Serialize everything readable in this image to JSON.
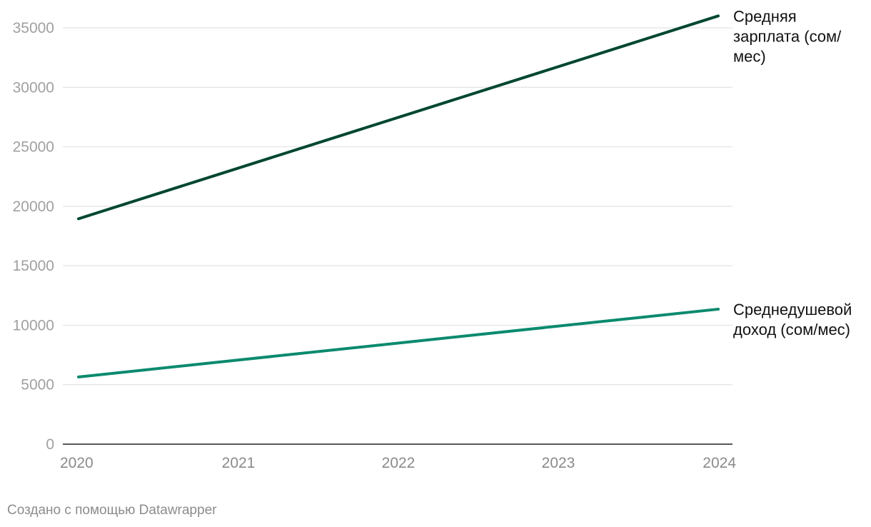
{
  "chart_data": {
    "type": "line",
    "x": [
      2020,
      2024
    ],
    "series": [
      {
        "name": "Средняя зарплата (сом/мес)",
        "name_lines": [
          "Средняя",
          "зарплата (сом/",
          "мес)"
        ],
        "values": [
          18950,
          36000
        ],
        "color": "#00472f"
      },
      {
        "name": "Среднедушевой доход (сом/мес)",
        "name_lines": [
          "Среднедушевой",
          "доход (сом/мес)"
        ],
        "values": [
          5650,
          11350
        ],
        "color": "#0a8a6e"
      }
    ],
    "x_ticks": [
      "2020",
      "2021",
      "2022",
      "2023",
      "2024"
    ],
    "y_ticks": [
      "0",
      "5000",
      "10000",
      "15000",
      "20000",
      "25000",
      "30000",
      "35000"
    ],
    "ylim": [
      0,
      36000
    ],
    "xlim": [
      2020,
      2024
    ],
    "grid": true
  },
  "footer": {
    "credit": "Создано с помощью Datawrapper"
  }
}
